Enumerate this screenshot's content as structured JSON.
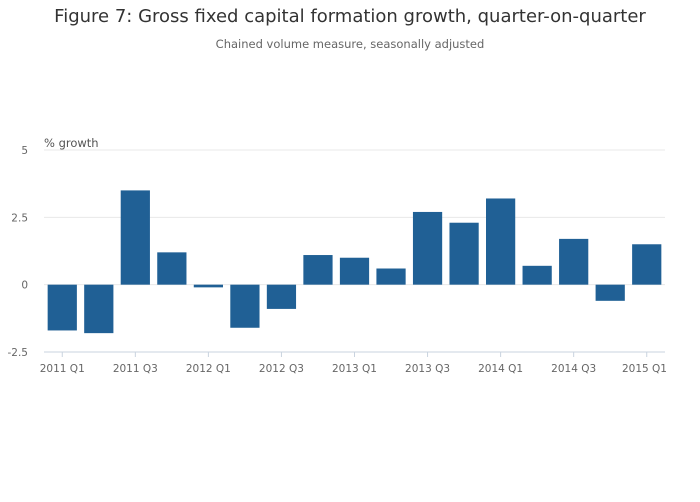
{
  "header": {
    "title": "Figure 7: Gross fixed capital formation growth, quarter-on-quarter",
    "subtitle": "Chained volume measure, seasonally adjusted"
  },
  "chart_data": {
    "type": "bar",
    "title": "Figure 7: Gross fixed capital formation growth, quarter-on-quarter",
    "subtitle": "Chained volume measure, seasonally adjusted",
    "xlabel": "",
    "ylabel": "% growth",
    "ylim": [
      -2.5,
      5
    ],
    "yticks": [
      -2.5,
      0,
      2.5,
      5
    ],
    "ytick_labels": [
      "-2.5",
      "0",
      "2.5",
      "5"
    ],
    "categories": [
      "2011 Q1",
      "2011 Q2",
      "2011 Q3",
      "2011 Q4",
      "2012 Q1",
      "2012 Q2",
      "2012 Q3",
      "2012 Q4",
      "2013 Q1",
      "2013 Q2",
      "2013 Q3",
      "2013 Q4",
      "2014 Q1",
      "2014 Q2",
      "2014 Q3",
      "2014 Q4",
      "2015 Q1"
    ],
    "xtick_labels": [
      "2011 Q1",
      "2011 Q3",
      "2012 Q1",
      "2012 Q3",
      "2013 Q1",
      "2013 Q3",
      "2014 Q1",
      "2014 Q3",
      "2015 Q1"
    ],
    "values": [
      -1.7,
      -1.8,
      3.5,
      1.2,
      -0.1,
      -1.6,
      -0.9,
      1.1,
      1.0,
      0.6,
      2.7,
      2.3,
      3.2,
      0.7,
      1.7,
      -0.6,
      1.5
    ],
    "bar_color": "#206095",
    "grid": true,
    "legend": "none"
  }
}
